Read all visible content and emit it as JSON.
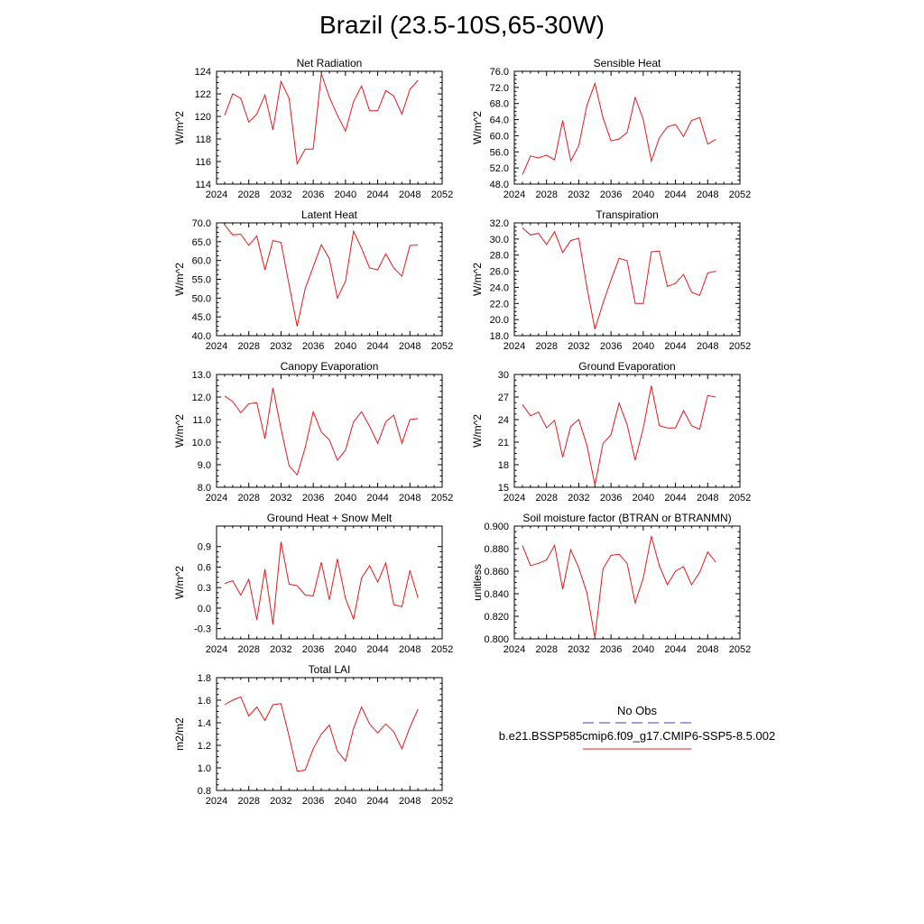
{
  "page": {
    "title": "Brazil (23.5-10S,65-30W)"
  },
  "legend": {
    "obs_label": "No Obs",
    "obs_color": "#6666cc",
    "model_label": "b.e21.BSSP585cmip6.f09_g17.CMIP6-SSP5-8.5.002",
    "model_color": "#e41a1c"
  },
  "chart_data": [
    {
      "type": "line",
      "title": "Net Radiation",
      "ylabel": "W/m^2",
      "xlim": [
        2024,
        2052
      ],
      "xticks": [
        2024,
        2028,
        2032,
        2036,
        2040,
        2044,
        2048,
        2052
      ],
      "ylim": [
        114,
        124
      ],
      "yticks": [
        114,
        116,
        118,
        120,
        122,
        124
      ],
      "ytick_labels": [
        "114",
        "116",
        "118",
        "120",
        "122",
        "124"
      ],
      "x": [
        2025,
        2026,
        2027,
        2028,
        2029,
        2030,
        2031,
        2032,
        2033,
        2034,
        2035,
        2036,
        2037,
        2038,
        2039,
        2040,
        2041,
        2042,
        2043,
        2044,
        2045,
        2046,
        2047,
        2048,
        2049
      ],
      "series": [
        {
          "values": [
            120.1,
            122.0,
            121.6,
            119.5,
            120.2,
            121.9,
            118.8,
            123.1,
            121.6,
            115.8,
            117.1,
            117.1,
            123.8,
            121.7,
            120.1,
            118.7,
            121.3,
            122.7,
            120.5,
            120.5,
            122.3,
            121.8,
            120.2,
            122.4,
            123.2
          ]
        }
      ]
    },
    {
      "type": "line",
      "title": "Sensible Heat",
      "ylabel": "W/m^2",
      "xlim": [
        2024,
        2052
      ],
      "xticks": [
        2024,
        2028,
        2032,
        2036,
        2040,
        2044,
        2048,
        2052
      ],
      "ylim": [
        48,
        76
      ],
      "yticks": [
        48,
        52,
        56,
        60,
        64,
        68,
        72,
        76
      ],
      "ytick_labels": [
        "48.0",
        "52.0",
        "56.0",
        "60.0",
        "64.0",
        "68.0",
        "72.0",
        "76.0"
      ],
      "x": [
        2025,
        2026,
        2027,
        2028,
        2029,
        2030,
        2031,
        2032,
        2033,
        2034,
        2035,
        2036,
        2037,
        2038,
        2039,
        2040,
        2041,
        2042,
        2043,
        2044,
        2045,
        2046,
        2047,
        2048,
        2049
      ],
      "series": [
        {
          "values": [
            50.3,
            55.0,
            54.5,
            55.2,
            54.0,
            63.8,
            53.8,
            57.5,
            67.5,
            73.0,
            64.5,
            58.7,
            59.2,
            60.8,
            69.5,
            64.0,
            53.7,
            59.5,
            62.2,
            62.8,
            59.8,
            63.8,
            64.5,
            57.9,
            59.1
          ]
        }
      ]
    },
    {
      "type": "line",
      "title": "Latent Heat",
      "ylabel": "W/m^2",
      "xlim": [
        2024,
        2052
      ],
      "xticks": [
        2024,
        2028,
        2032,
        2036,
        2040,
        2044,
        2048,
        2052
      ],
      "ylim": [
        40,
        70
      ],
      "yticks": [
        40,
        45,
        50,
        55,
        60,
        65,
        70
      ],
      "ytick_labels": [
        "40.0",
        "45.0",
        "50.0",
        "55.0",
        "60.0",
        "65.0",
        "70.0"
      ],
      "x": [
        2025,
        2026,
        2027,
        2028,
        2029,
        2030,
        2031,
        2032,
        2033,
        2034,
        2035,
        2036,
        2037,
        2038,
        2039,
        2040,
        2041,
        2042,
        2043,
        2044,
        2045,
        2046,
        2047,
        2048,
        2049
      ],
      "series": [
        {
          "values": [
            69.5,
            66.8,
            67.0,
            64.0,
            66.5,
            57.5,
            65.3,
            64.8,
            53.5,
            42.5,
            52.5,
            58.3,
            64.2,
            60.5,
            50.0,
            54.5,
            67.8,
            63.2,
            58.0,
            57.5,
            61.8,
            58.0,
            55.8,
            64.0,
            64.1
          ]
        }
      ]
    },
    {
      "type": "line",
      "title": "Transpiration",
      "ylabel": "W/m^2",
      "xlim": [
        2024,
        2052
      ],
      "xticks": [
        2024,
        2028,
        2032,
        2036,
        2040,
        2044,
        2048,
        2052
      ],
      "ylim": [
        18,
        32
      ],
      "yticks": [
        18,
        20,
        22,
        24,
        26,
        28,
        30,
        32
      ],
      "ytick_labels": [
        "18.0",
        "20.0",
        "22.0",
        "24.0",
        "26.0",
        "28.0",
        "30.0",
        "32.0"
      ],
      "x": [
        2025,
        2026,
        2027,
        2028,
        2029,
        2030,
        2031,
        2032,
        2033,
        2034,
        2035,
        2036,
        2037,
        2038,
        2039,
        2040,
        2041,
        2042,
        2043,
        2044,
        2045,
        2046,
        2047,
        2048,
        2049
      ],
      "series": [
        {
          "values": [
            31.4,
            30.5,
            30.7,
            29.3,
            30.9,
            28.3,
            29.8,
            30.1,
            24.0,
            18.8,
            22.0,
            24.9,
            27.6,
            27.3,
            22.0,
            22.0,
            28.4,
            28.5,
            24.1,
            24.5,
            25.6,
            23.4,
            23.0,
            25.8,
            26.0
          ]
        }
      ]
    },
    {
      "type": "line",
      "title": "Canopy Evaporation",
      "ylabel": "W/m^2",
      "xlim": [
        2024,
        2052
      ],
      "xticks": [
        2024,
        2028,
        2032,
        2036,
        2040,
        2044,
        2048,
        2052
      ],
      "ylim": [
        8,
        13
      ],
      "yticks": [
        8,
        9,
        10,
        11,
        12,
        13
      ],
      "ytick_labels": [
        "8.0",
        "9.0",
        "10.0",
        "11.0",
        "12.0",
        "13.0"
      ],
      "x": [
        2025,
        2026,
        2027,
        2028,
        2029,
        2030,
        2031,
        2032,
        2033,
        2034,
        2035,
        2036,
        2037,
        2038,
        2039,
        2040,
        2041,
        2042,
        2043,
        2044,
        2045,
        2046,
        2047,
        2048,
        2049
      ],
      "series": [
        {
          "values": [
            12.05,
            11.8,
            11.3,
            11.7,
            11.75,
            10.15,
            12.4,
            10.6,
            8.95,
            8.55,
            9.75,
            11.35,
            10.45,
            10.1,
            9.2,
            9.65,
            10.9,
            11.35,
            10.7,
            9.95,
            10.9,
            11.2,
            9.95,
            11.0,
            11.05
          ]
        }
      ]
    },
    {
      "type": "line",
      "title": "Ground Evaporation",
      "ylabel": "W/m^2",
      "xlim": [
        2024,
        2052
      ],
      "xticks": [
        2024,
        2028,
        2032,
        2036,
        2040,
        2044,
        2048,
        2052
      ],
      "ylim": [
        15,
        30
      ],
      "yticks": [
        15,
        18,
        21,
        24,
        27,
        30
      ],
      "ytick_labels": [
        "15",
        "18",
        "21",
        "24",
        "27",
        "30"
      ],
      "x": [
        2025,
        2026,
        2027,
        2028,
        2029,
        2030,
        2031,
        2032,
        2033,
        2034,
        2035,
        2036,
        2037,
        2038,
        2039,
        2040,
        2041,
        2042,
        2043,
        2044,
        2045,
        2046,
        2047,
        2048,
        2049
      ],
      "series": [
        {
          "values": [
            26.0,
            24.5,
            25.0,
            22.9,
            23.9,
            19.0,
            23.1,
            24.0,
            20.6,
            15.3,
            20.8,
            22.0,
            26.2,
            23.3,
            18.6,
            22.9,
            28.5,
            23.2,
            22.9,
            22.9,
            25.2,
            23.2,
            22.7,
            27.2,
            27.0
          ]
        }
      ]
    },
    {
      "type": "line",
      "title": "Ground Heat + Snow Melt",
      "ylabel": "W/m^2",
      "xlim": [
        2024,
        2052
      ],
      "xticks": [
        2024,
        2028,
        2032,
        2036,
        2040,
        2044,
        2048,
        2052
      ],
      "ylim": [
        -0.45,
        1.2
      ],
      "yticks": [
        -0.3,
        0.0,
        0.3,
        0.6,
        0.9
      ],
      "ytick_labels": [
        "-0.3",
        "0.0",
        "0.3",
        "0.6",
        "0.9"
      ],
      "x": [
        2025,
        2026,
        2027,
        2028,
        2029,
        2030,
        2031,
        2032,
        2033,
        2034,
        2035,
        2036,
        2037,
        2038,
        2039,
        2040,
        2041,
        2042,
        2043,
        2044,
        2045,
        2046,
        2047,
        2048,
        2049
      ],
      "series": [
        {
          "values": [
            0.36,
            0.4,
            0.19,
            0.42,
            -0.17,
            0.57,
            -0.24,
            0.97,
            0.35,
            0.33,
            0.19,
            0.18,
            0.67,
            0.12,
            0.72,
            0.14,
            -0.16,
            0.44,
            0.62,
            0.38,
            0.66,
            0.05,
            0.02,
            0.55,
            0.15
          ]
        }
      ]
    },
    {
      "type": "line",
      "title": "Soil moisture factor (BTRAN or BTRANMN)",
      "ylabel": "unitless",
      "xlim": [
        2024,
        2052
      ],
      "xticks": [
        2024,
        2028,
        2032,
        2036,
        2040,
        2044,
        2048,
        2052
      ],
      "ylim": [
        0.8,
        0.9
      ],
      "yticks": [
        0.8,
        0.82,
        0.84,
        0.86,
        0.88,
        0.9
      ],
      "ytick_labels": [
        "0.800",
        "0.820",
        "0.840",
        "0.860",
        "0.880",
        "0.900"
      ],
      "x": [
        2025,
        2026,
        2027,
        2028,
        2029,
        2030,
        2031,
        2032,
        2033,
        2034,
        2035,
        2036,
        2037,
        2038,
        2039,
        2040,
        2041,
        2042,
        2043,
        2044,
        2045,
        2046,
        2047,
        2048,
        2049
      ],
      "series": [
        {
          "values": [
            0.883,
            0.865,
            0.867,
            0.87,
            0.883,
            0.844,
            0.879,
            0.863,
            0.841,
            0.801,
            0.862,
            0.874,
            0.875,
            0.867,
            0.832,
            0.854,
            0.891,
            0.865,
            0.848,
            0.86,
            0.864,
            0.848,
            0.859,
            0.877,
            0.868
          ]
        }
      ]
    },
    {
      "type": "line",
      "title": "Total LAI",
      "ylabel": "m2/m2",
      "xlim": [
        2024,
        2052
      ],
      "xticks": [
        2024,
        2028,
        2032,
        2036,
        2040,
        2044,
        2048,
        2052
      ],
      "ylim": [
        0.8,
        1.8
      ],
      "yticks": [
        0.8,
        1.0,
        1.2,
        1.4,
        1.6,
        1.8
      ],
      "ytick_labels": [
        "0.8",
        "1.0",
        "1.2",
        "1.4",
        "1.6",
        "1.8"
      ],
      "x": [
        2025,
        2026,
        2027,
        2028,
        2029,
        2030,
        2031,
        2032,
        2033,
        2034,
        2035,
        2036,
        2037,
        2038,
        2039,
        2040,
        2041,
        2042,
        2043,
        2044,
        2045,
        2046,
        2047,
        2048,
        2049
      ],
      "series": [
        {
          "values": [
            1.56,
            1.6,
            1.63,
            1.46,
            1.54,
            1.42,
            1.56,
            1.57,
            1.28,
            0.97,
            0.98,
            1.17,
            1.3,
            1.38,
            1.15,
            1.06,
            1.35,
            1.54,
            1.39,
            1.31,
            1.39,
            1.32,
            1.17,
            1.36,
            1.52
          ]
        }
      ]
    }
  ]
}
